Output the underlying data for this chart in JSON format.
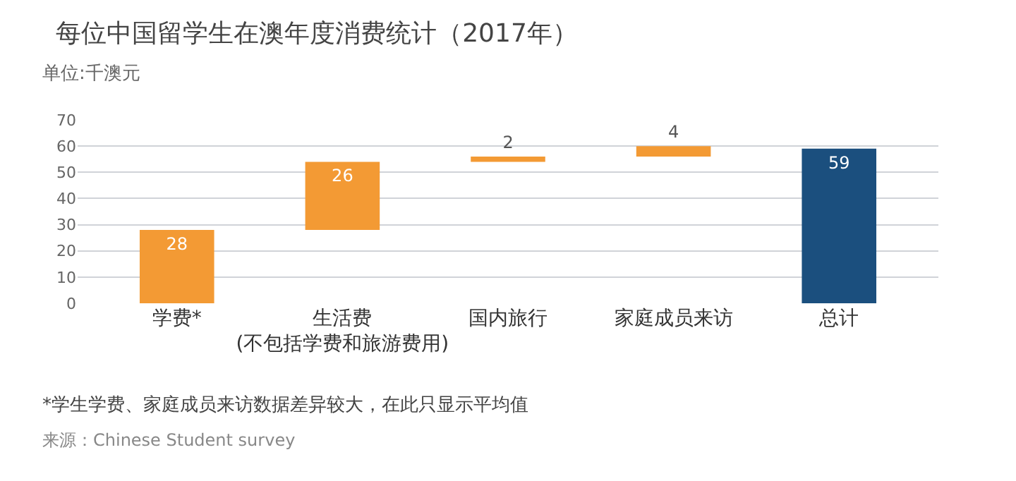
{
  "chart_data": {
    "type": "bar",
    "title": "每位中国留学生在澳年度消费统计（2017年）",
    "subtitle": "单位:千澳元",
    "categories": [
      "学费*",
      "生活费\n(不包括学费和旅游费用)",
      "国内旅行",
      "家庭成员来访",
      "总计"
    ],
    "values": [
      28,
      26,
      2,
      4,
      59
    ],
    "base": [
      0,
      28,
      54,
      56,
      0
    ],
    "colors": [
      "#f39a34",
      "#f39a34",
      "#f39a34",
      "#f39a34",
      "#1b4f7e"
    ],
    "ylim": [
      0,
      70
    ],
    "yticks": [
      0,
      10,
      20,
      30,
      40,
      50,
      60,
      70
    ],
    "grid": "y",
    "legend": false,
    "data_labels": true,
    "annotations": [
      "*学生学费、家庭成员来访数据差异较大，在此只显示平均值",
      "来源：Chinese Student survey"
    ]
  }
}
